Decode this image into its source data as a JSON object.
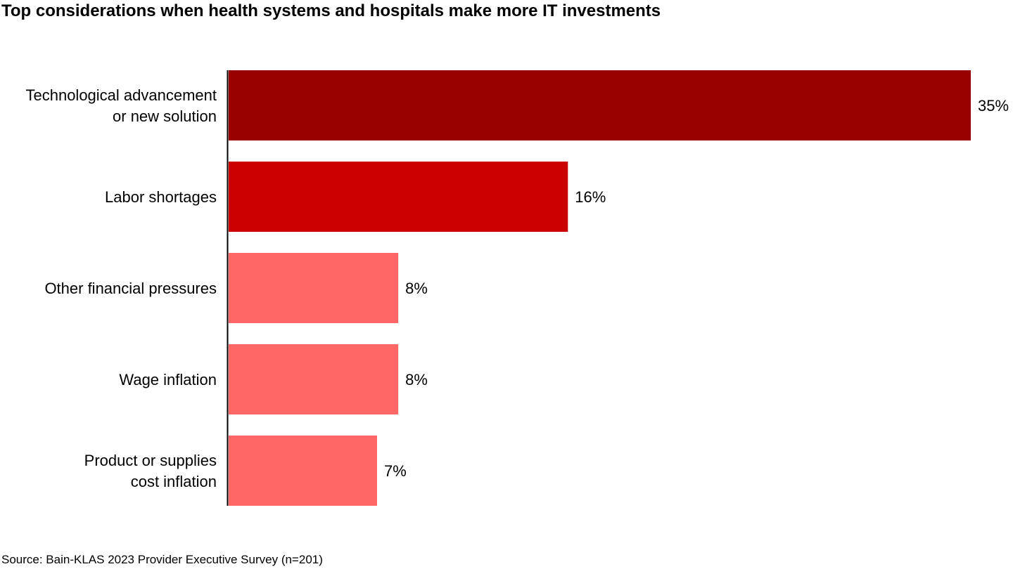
{
  "title": "Top considerations when health systems and hospitals make more IT investments",
  "source": "Source: Bain-KLAS 2023 Provider Executive Survey (n=201)",
  "chart_data": {
    "type": "bar",
    "orientation": "horizontal",
    "title": "Top considerations when health systems and hospitals make more IT investments",
    "categories": [
      [
        "Technological advancement",
        "or new solution"
      ],
      [
        "Labor shortages"
      ],
      [
        "Other financial pressures"
      ],
      [
        "Wage inflation"
      ],
      [
        "Product or supplies",
        "cost inflation"
      ]
    ],
    "values": [
      35,
      16,
      8,
      8,
      7
    ],
    "value_labels": [
      "35%",
      "16%",
      "8%",
      "8%",
      "7%"
    ],
    "colors": [
      "#990000",
      "#cc0000",
      "#ff6666",
      "#ff6666",
      "#ff6666"
    ],
    "xlim": [
      0,
      35
    ],
    "grid": false,
    "legend": "none"
  }
}
